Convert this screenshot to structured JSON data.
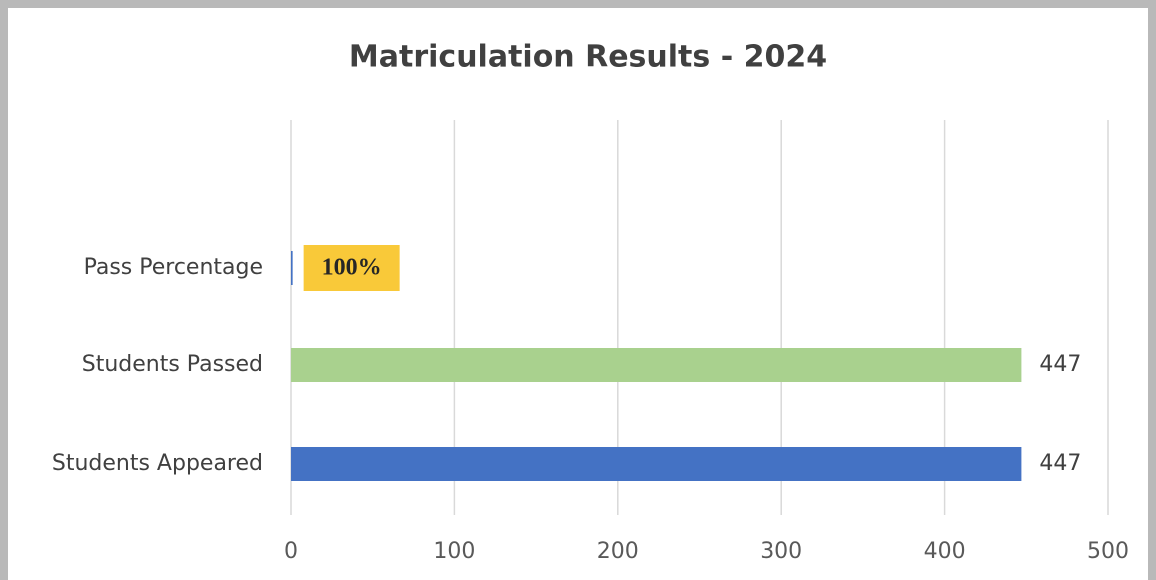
{
  "chart_data": {
    "type": "bar",
    "orientation": "horizontal",
    "title": "Matriculation Results - 2024",
    "categories": [
      "Pass Percentage",
      "Students Passed",
      "Students Appeared"
    ],
    "values": [
      1,
      447,
      447
    ],
    "value_labels": [
      "100%",
      "447",
      "447"
    ],
    "colors": [
      "#4472c4",
      "#a9d18e",
      "#4472c4"
    ],
    "xlim": [
      0,
      500
    ],
    "xticks": [
      0,
      100,
      200,
      300,
      400,
      500
    ],
    "grid": true
  }
}
